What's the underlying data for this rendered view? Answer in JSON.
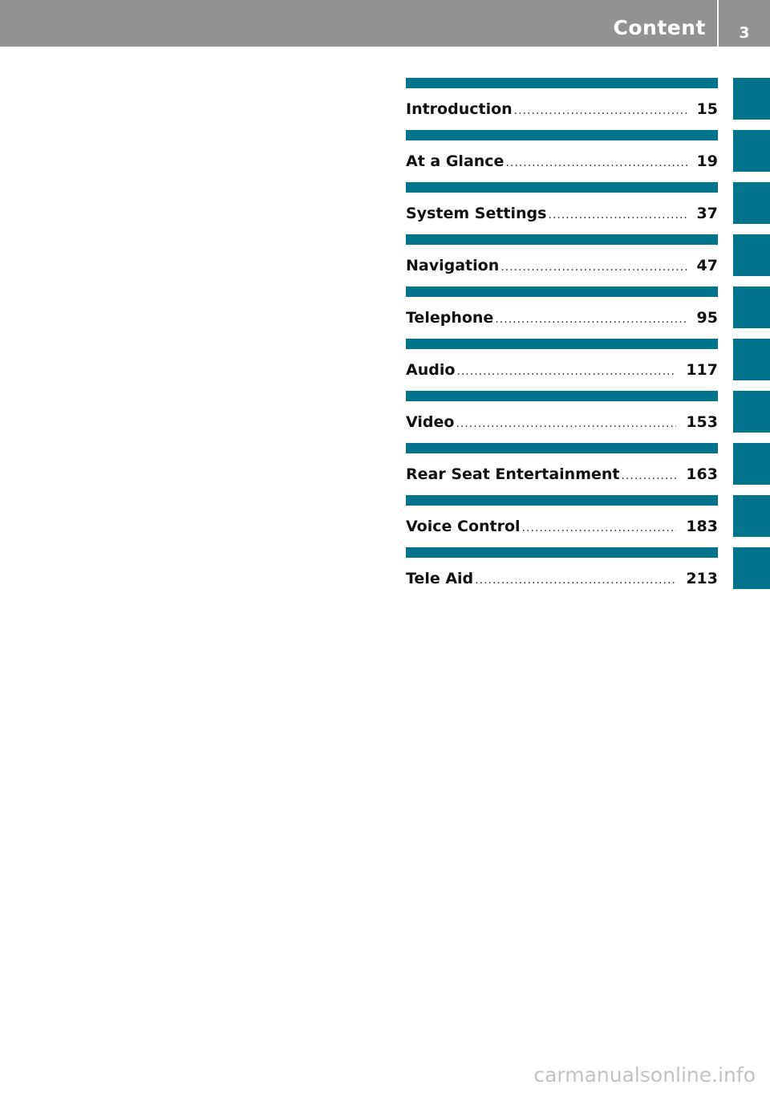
{
  "header": {
    "title": "Content",
    "page_number": "3"
  },
  "colors": {
    "header_bar": "#929292",
    "accent": "#00748a"
  },
  "toc": [
    {
      "title": "Introduction",
      "page": "15"
    },
    {
      "title": "At a Glance",
      "page": "19"
    },
    {
      "title": "System Settings",
      "page": "37"
    },
    {
      "title": "Navigation",
      "page": "47"
    },
    {
      "title": "Telephone",
      "page": "95"
    },
    {
      "title": "Audio",
      "page": "117"
    },
    {
      "title": "Video",
      "page": "153"
    },
    {
      "title": "Rear Seat Entertainment",
      "page": "163"
    },
    {
      "title": "Voice Control",
      "page": "183"
    },
    {
      "title": "Tele Aid",
      "page": "213"
    }
  ],
  "watermark": "carmanualsonline.info"
}
